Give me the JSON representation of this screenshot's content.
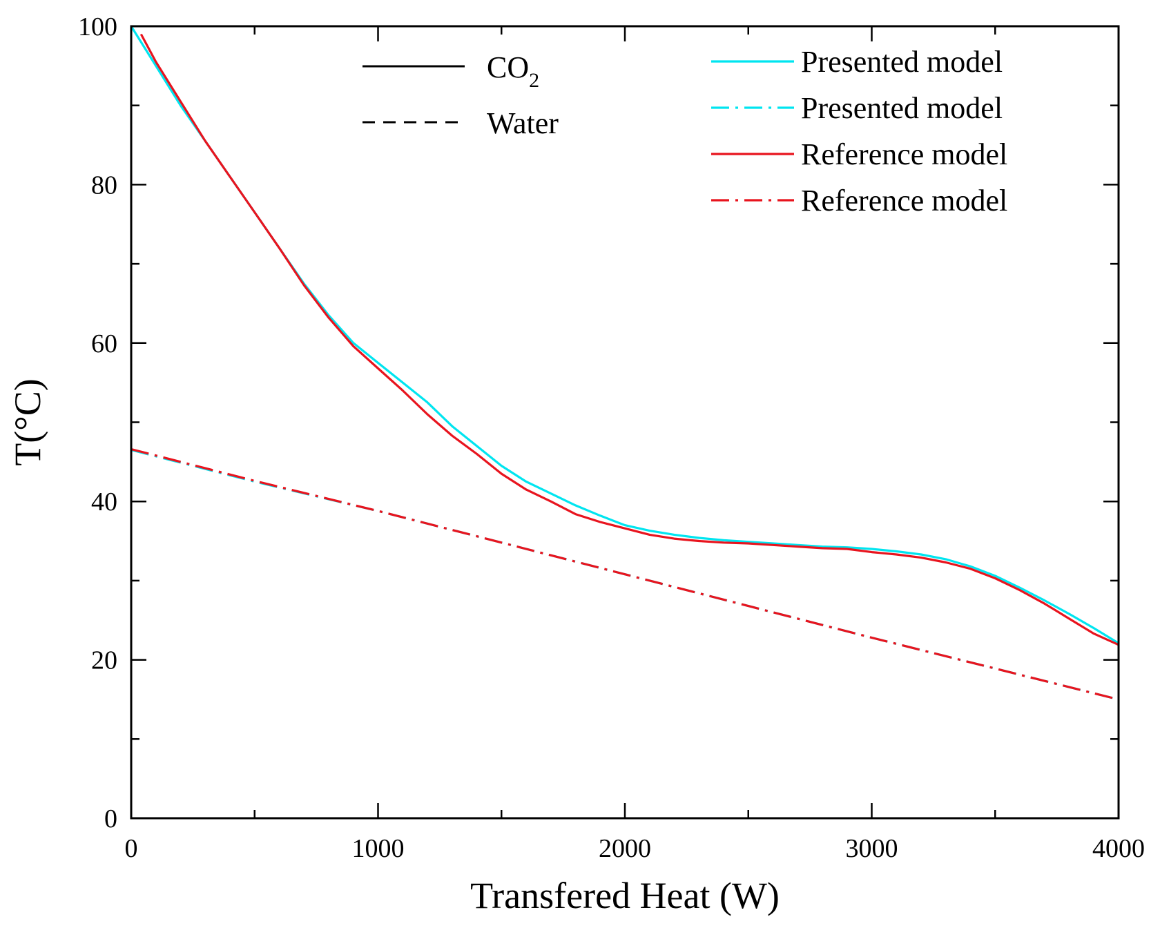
{
  "chart_data": {
    "type": "line",
    "title": "",
    "xlabel": "Transfered Heat (W)",
    "ylabel": "T(°C)",
    "xlim": [
      0,
      4000
    ],
    "ylim": [
      0,
      100
    ],
    "xticks": [
      0,
      1000,
      2000,
      3000,
      4000
    ],
    "yticks": [
      0,
      20,
      40,
      60,
      80,
      100
    ],
    "grid": false,
    "legend_fluids": [
      {
        "label": "CO",
        "subscript": "2",
        "style": "solid"
      },
      {
        "label": "Water",
        "subscript": "",
        "style": "dashed"
      }
    ],
    "series": [
      {
        "name": "Presented model",
        "fluid": "CO2",
        "color": "#00e5f0",
        "style": "solid",
        "x": [
          0,
          100,
          200,
          300,
          400,
          500,
          600,
          700,
          800,
          900,
          1000,
          1100,
          1200,
          1300,
          1400,
          1500,
          1600,
          1700,
          1800,
          1900,
          2000,
          2100,
          2200,
          2300,
          2400,
          2500,
          2600,
          2700,
          2800,
          2900,
          3000,
          3100,
          3200,
          3300,
          3400,
          3500,
          3600,
          3700,
          3800,
          3900,
          4000
        ],
        "values": [
          100,
          95,
          90,
          85.5,
          81,
          76.5,
          72,
          67.5,
          63.5,
          60,
          57.5,
          55,
          52.5,
          49.5,
          47,
          44.5,
          42.5,
          41,
          39.5,
          38.2,
          37,
          36.3,
          35.8,
          35.4,
          35.1,
          34.9,
          34.7,
          34.5,
          34.3,
          34.2,
          34,
          33.7,
          33.3,
          32.7,
          31.8,
          30.6,
          29.1,
          27.5,
          25.8,
          24,
          22.1
        ]
      },
      {
        "name": "Presented model",
        "fluid": "Water",
        "color": "#00e5f0",
        "style": "dashdot",
        "x": [
          0,
          500,
          1000,
          1500,
          2000,
          2500,
          3000,
          3500,
          4000
        ],
        "values": [
          46.5,
          42.5,
          38.8,
          34.8,
          30.8,
          26.8,
          22.8,
          18.9,
          15
        ]
      },
      {
        "name": "Reference model",
        "fluid": "CO2",
        "color": "#e8141e",
        "style": "solid",
        "x": [
          40,
          100,
          200,
          300,
          400,
          500,
          600,
          700,
          800,
          900,
          1000,
          1100,
          1200,
          1300,
          1400,
          1500,
          1600,
          1700,
          1800,
          1900,
          2000,
          2100,
          2200,
          2300,
          2400,
          2500,
          2600,
          2700,
          2800,
          2900,
          3000,
          3100,
          3200,
          3300,
          3400,
          3500,
          3600,
          3700,
          3800,
          3900,
          4000
        ],
        "values": [
          99,
          95.5,
          90.5,
          85.5,
          81,
          76.5,
          72,
          67.3,
          63.2,
          59.6,
          56.8,
          54,
          51,
          48.3,
          46,
          43.5,
          41.5,
          40,
          38.4,
          37.4,
          36.6,
          35.8,
          35.3,
          35,
          34.8,
          34.7,
          34.5,
          34.3,
          34.1,
          34,
          33.6,
          33.3,
          32.9,
          32.3,
          31.5,
          30.3,
          28.8,
          27.1,
          25.2,
          23.3,
          21.9
        ]
      },
      {
        "name": "Reference model",
        "fluid": "Water",
        "color": "#e8141e",
        "style": "dashdot",
        "x": [
          0,
          500,
          1000,
          1500,
          2000,
          2500,
          3000,
          3500,
          4000
        ],
        "values": [
          46.6,
          42.6,
          38.8,
          34.8,
          30.8,
          26.8,
          22.8,
          18.9,
          15
        ]
      }
    ]
  }
}
